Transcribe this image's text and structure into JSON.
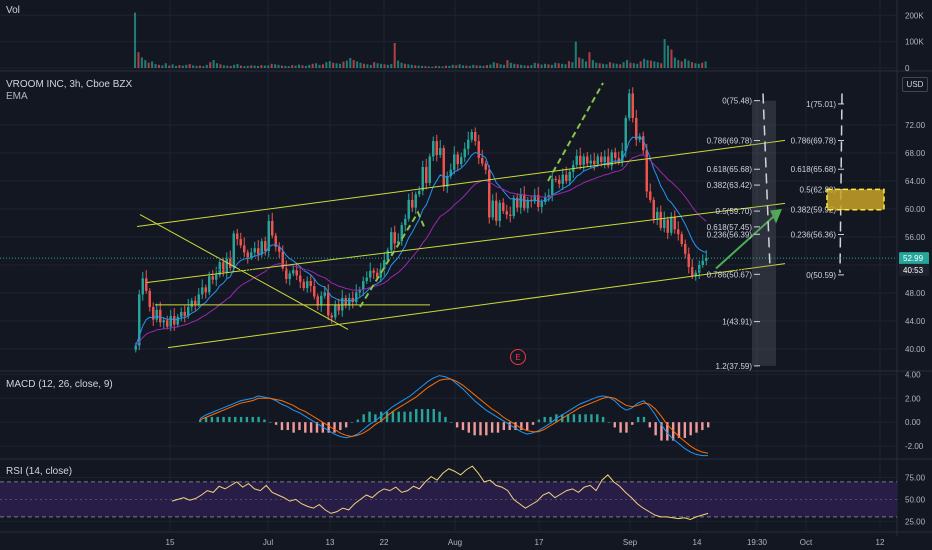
{
  "theme": {
    "background": "#131722",
    "grid": "#1f2230",
    "up": "#26a69a",
    "down": "#ef5350",
    "channel": "#cddc39",
    "ema": "#2196f3",
    "ema2": "#9c27b0",
    "green_arrow": "#4caf50",
    "fib": "#787b86",
    "gold": "#c9a227",
    "rsi": "#f2d37b",
    "rsi_band": "#2a1e4a",
    "macd_line": "#2196f3",
    "signal_line": "#ff6d00"
  },
  "panes": {
    "volume": {
      "label": "Vol"
    },
    "price": {
      "title": "VROOM INC, 3h, Cboe BZX",
      "subtitle": "EMA",
      "currency": "USD"
    },
    "macd": {
      "label": "MACD (12, 26, close, 9)"
    },
    "rsi": {
      "label": "RSI (14, close)"
    }
  },
  "earnings_marker": "E",
  "chart_data": [
    {
      "type": "bar",
      "name": "volume",
      "ylim": [
        0,
        220000
      ],
      "y_ticks": [
        {
          "label": "200K",
          "value": 200000
        },
        {
          "label": "100K",
          "value": 100000
        },
        {
          "label": "0",
          "value": 0
        }
      ],
      "values": [
        210000,
        60000,
        40000,
        30000,
        20000,
        25000,
        15000,
        12000,
        10000,
        18000,
        9000,
        14000,
        8000,
        11000,
        9000,
        12000,
        15000,
        10000,
        8000,
        9000,
        7000,
        12000,
        22000,
        30000,
        18000,
        14000,
        10000,
        9000,
        8000,
        12000,
        15000,
        9000,
        7000,
        8000,
        10000,
        9000,
        8000,
        11000,
        9000,
        10000,
        16000,
        14000,
        12000,
        9000,
        8000,
        7000,
        11000,
        9000,
        13000,
        10000,
        8000,
        12000,
        16000,
        18000,
        12000,
        14000,
        22000,
        26000,
        20000,
        18000,
        16000,
        24000,
        28000,
        38000,
        30000,
        25000,
        20000,
        16000,
        14000,
        12000,
        22000,
        18000,
        16000,
        14000,
        12000,
        15000,
        95000,
        28000,
        20000,
        16000,
        14000,
        12000,
        10000,
        9000,
        8000,
        7000,
        6000,
        5000,
        8000,
        7000,
        6000,
        9000,
        8000,
        12000,
        10000,
        14000,
        10000,
        9000,
        8000,
        12000,
        10000,
        9000,
        8000,
        11000,
        13000,
        22000,
        18000,
        14000,
        12000,
        30000,
        20000,
        16000,
        14000,
        12000,
        10000,
        9000,
        11000,
        20000,
        17000,
        13000,
        16000,
        14000,
        12000,
        20000,
        18000,
        16000,
        14000,
        26000,
        22000,
        100000,
        40000,
        35000,
        25000,
        60000,
        30000,
        20000,
        18000,
        16000,
        14000,
        22000,
        18000,
        16000,
        14000,
        22000,
        30000,
        20000,
        18000,
        16000,
        25000,
        35000,
        30000,
        28000,
        25000,
        22000,
        18000,
        110000,
        85000,
        70000,
        40000,
        30000,
        25000,
        35000,
        28000,
        22000,
        18000,
        16000,
        20000,
        25000
      ]
    },
    {
      "type": "candlestick",
      "name": "VROOM INC",
      "ylim": [
        37,
        78
      ],
      "y_ticks": [
        {
          "label": "40.00",
          "value": 40
        },
        {
          "label": "44.00",
          "value": 44
        },
        {
          "label": "48.00",
          "value": 48
        },
        {
          "label": "52.00",
          "value": 52
        },
        {
          "label": "56.00",
          "value": 56
        },
        {
          "label": "60.00",
          "value": 60
        },
        {
          "label": "64.00",
          "value": 64
        },
        {
          "label": "68.00",
          "value": 68
        },
        {
          "label": "72.00",
          "value": 72
        }
      ],
      "x_ticks": [
        "15",
        "Jul",
        "13",
        "22",
        "Aug",
        "17",
        "Sep",
        "14",
        "19:30",
        "Oct",
        "12"
      ],
      "price_badges": [
        {
          "label": "52.99",
          "value": 52.99,
          "color": "#26a69a"
        },
        {
          "label": "40:53",
          "value": 51.3,
          "color": "#1e222d"
        }
      ],
      "close": [
        40.5,
        47.8,
        50.1,
        48.3,
        46.0,
        44.2,
        45.6,
        43.8,
        44.1,
        43.2,
        44.7,
        43.5,
        44.6,
        45.3,
        44.7,
        46.0,
        46.9,
        46.4,
        47.8,
        48.8,
        48.1,
        50.4,
        49.9,
        50.6,
        52.4,
        51.0,
        52.9,
        51.6,
        56.5,
        55.7,
        54.8,
        53.8,
        53.1,
        53.8,
        54.4,
        53.5,
        55.4,
        54.0,
        58.3,
        56.2,
        54.6,
        53.9,
        51.5,
        50.0,
        50.8,
        51.3,
        50.5,
        49.6,
        48.7,
        49.7,
        49.0,
        47.5,
        46.2,
        47.6,
        48.1,
        44.8,
        44.5,
        46.3,
        45.5,
        47.3,
        46.2,
        47.3,
        46.7,
        48.1,
        48.5,
        49.7,
        50.2,
        51.2,
        50.9,
        50.2,
        51.4,
        52.7,
        54.1,
        56.7,
        55.1,
        55.4,
        57.7,
        58.6,
        61.3,
        60.2,
        62.1,
        62.6,
        66.0,
        63.7,
        67.5,
        69.7,
        67.7,
        68.7,
        63.2,
        64.7,
        65.6,
        67.8,
        66.4,
        67.4,
        68.6,
        69.9,
        71.0,
        69.7,
        67.3,
        66.5,
        65.6,
        58.8,
        61.2,
        58.3,
        60.9,
        59.7,
        59.2,
        59.0,
        61.6,
        60.2,
        62.1,
        60.1,
        61.3,
        61.1,
        62.0,
        60.3,
        61.0,
        61.7,
        62.0,
        64.3,
        64.2,
        63.6,
        64.9,
        64.0,
        65.3,
        66.3,
        67.6,
        66.3,
        67.5,
        66.5,
        66.9,
        66.4,
        67.5,
        66.7,
        67.5,
        66.2,
        68.1,
        67.3,
        66.7,
        68.3,
        73.0,
        76.5,
        73.0,
        69.9,
        70.4,
        68.4,
        62.5,
        61.3,
        58.6,
        59.6,
        57.3,
        58.5,
        56.6,
        58.9,
        57.1,
        56.4,
        55.0,
        53.6,
        51.7,
        50.4,
        50.9,
        52.0,
        52.6,
        52.99
      ]
    },
    {
      "type": "line",
      "name": "MACD (12, 26, close, 9)",
      "ylim": [
        -3.0,
        4.2
      ],
      "y_ticks": [
        {
          "label": "4.00",
          "value": 4
        },
        {
          "label": "2.00",
          "value": 2
        },
        {
          "label": "0.00",
          "value": 0
        },
        {
          "label": "-2.00",
          "value": -2
        }
      ],
      "series": [
        {
          "values": [
            0.3,
            0.6,
            0.8,
            1.0,
            1.2,
            1.4,
            1.6,
            1.8,
            1.9,
            2.0,
            2.2,
            2.1,
            2.0,
            1.8,
            1.5,
            1.3,
            1.0,
            0.8,
            0.5,
            0.2,
            -0.1,
            -0.4,
            -0.7,
            -1.0,
            -1.2,
            -1.3,
            -1.2,
            -1.0,
            -0.6,
            -0.2,
            0.1,
            0.5,
            0.9,
            1.3,
            1.6,
            1.9,
            2.2,
            2.6,
            3.0,
            3.4,
            3.7,
            3.9,
            3.8,
            3.6,
            3.2,
            2.8,
            2.3,
            1.8,
            1.4,
            1.0,
            0.7,
            0.4,
            0.1,
            -0.2,
            -0.5,
            -0.8,
            -1.0,
            -0.9,
            -0.7,
            -0.4,
            -0.1,
            0.3,
            0.6,
            0.9,
            1.2,
            1.5,
            1.7,
            1.9,
            2.1,
            2.2,
            2.1,
            1.8,
            1.3,
            1.0,
            1.2,
            1.6,
            1.8,
            1.3,
            0.6,
            -0.2,
            -0.9,
            -1.4,
            -1.8,
            -2.2,
            -2.5,
            -2.7,
            -2.8,
            -2.8
          ]
        },
        {
          "values": [
            0.2,
            0.4,
            0.6,
            0.8,
            1.0,
            1.2,
            1.4,
            1.6,
            1.7,
            1.8,
            2.0,
            2.0,
            2.0,
            1.9,
            1.8,
            1.6,
            1.4,
            1.1,
            0.9,
            0.6,
            0.3,
            0.0,
            -0.3,
            -0.6,
            -0.9,
            -1.1,
            -1.2,
            -1.1,
            -0.9,
            -0.6,
            -0.2,
            0.1,
            0.5,
            0.9,
            1.2,
            1.5,
            1.8,
            2.1,
            2.5,
            2.9,
            3.2,
            3.5,
            3.6,
            3.6,
            3.4,
            3.1,
            2.7,
            2.3,
            1.9,
            1.5,
            1.1,
            0.8,
            0.4,
            0.1,
            -0.2,
            -0.5,
            -0.7,
            -0.8,
            -0.8,
            -0.6,
            -0.3,
            0.0,
            0.3,
            0.6,
            0.9,
            1.2,
            1.4,
            1.6,
            1.8,
            2.0,
            2.1,
            2.0,
            1.7,
            1.4,
            1.3,
            1.4,
            1.6,
            1.5,
            1.1,
            0.5,
            -0.2,
            -0.7,
            -1.2,
            -1.6,
            -2.0,
            -2.3,
            -2.5,
            -2.6
          ]
        }
      ]
    },
    {
      "type": "line",
      "name": "RSI (14, close)",
      "ylim": [
        15,
        95
      ],
      "y_ticks": [
        {
          "label": "75.00",
          "value": 75
        },
        {
          "label": "50.00",
          "value": 50
        },
        {
          "label": "25.00",
          "value": 25
        }
      ],
      "bands": [
        30,
        70
      ],
      "values": [
        48,
        50,
        52,
        49,
        51,
        55,
        60,
        58,
        65,
        62,
        66,
        70,
        64,
        68,
        62,
        60,
        66,
        58,
        55,
        52,
        48,
        50,
        45,
        42,
        40,
        44,
        38,
        34,
        36,
        40,
        38,
        45,
        50,
        55,
        52,
        58,
        62,
        60,
        64,
        58,
        60,
        65,
        62,
        70,
        76,
        72,
        80,
        85,
        82,
        78,
        84,
        88,
        80,
        70,
        72,
        66,
        64,
        60,
        50,
        45,
        40,
        44,
        48,
        55,
        58,
        52,
        56,
        60,
        62,
        58,
        64,
        66,
        60,
        72,
        78,
        70,
        65,
        58,
        52,
        45,
        40,
        36,
        32,
        30,
        30,
        29,
        28,
        29,
        27,
        30,
        32,
        34
      ]
    }
  ],
  "fib_left": [
    {
      "label": "0(75.48)",
      "value": 75.48
    },
    {
      "label": "0.786(69.78)",
      "value": 69.78
    },
    {
      "label": "0.618(65.68)",
      "value": 65.68
    },
    {
      "label": "0.382(63.42)",
      "value": 63.42
    },
    {
      "label": "0.5(59.70)",
      "value": 59.7
    },
    {
      "label": "0.618(57.45)",
      "value": 57.45
    },
    {
      "label": "0.236(56.39)",
      "value": 56.39
    },
    {
      "label": "0.786(50.67)",
      "value": 50.67
    },
    {
      "label": "1(43.91)",
      "value": 43.91
    },
    {
      "label": "1.2(37.59)",
      "value": 37.59
    }
  ],
  "fib_right": [
    {
      "label": "1(75.01)",
      "value": 75.01
    },
    {
      "label": "0.786(69.78)",
      "value": 69.78
    },
    {
      "label": "0.618(65.68)",
      "value": 65.68
    },
    {
      "label": "0.5(62.80)",
      "value": 62.8
    },
    {
      "label": "0.382(59.92)",
      "value": 59.92
    },
    {
      "label": "0.236(56.36)",
      "value": 56.36
    },
    {
      "label": "0(50.59)",
      "value": 50.59
    }
  ],
  "target_zone": {
    "low": 59.9,
    "high": 62.8
  }
}
